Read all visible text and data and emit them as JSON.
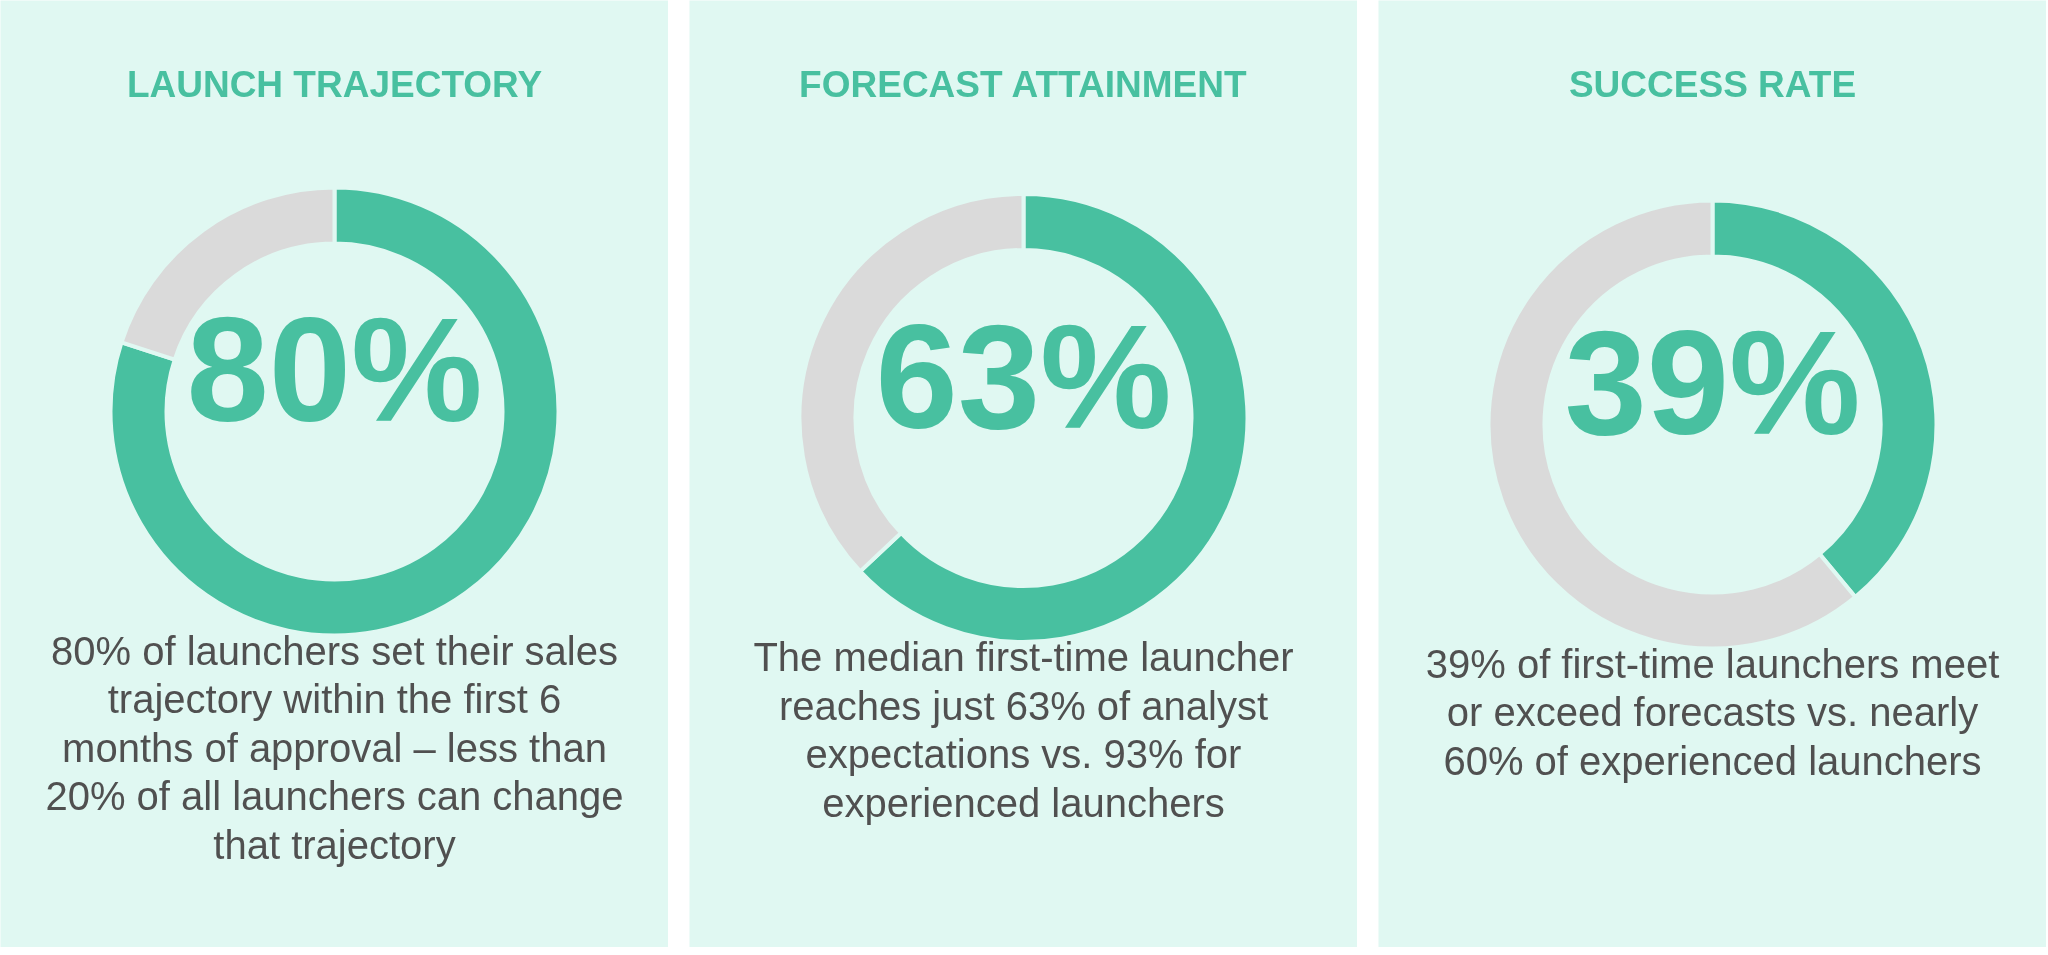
{
  "chart_data": [
    {
      "type": "donut",
      "title": "LAUNCH TRAJECTORY",
      "categories": [
        null,
        null
      ],
      "values": [
        80,
        20
      ],
      "colors": [
        "#48c0a0",
        "#dadada"
      ],
      "value_labels": [
        "80%",
        null
      ],
      "annotations": [
        "80% of launchers set their sales trajectory within the first 6 months of approval – less than 20% of all launchers can change that trajectory"
      ]
    },
    {
      "type": "donut",
      "title": "FORECAST ATTAINMENT",
      "categories": [
        null,
        null
      ],
      "values": [
        63,
        37
      ],
      "colors": [
        "#48c0a0",
        "#dadada"
      ],
      "value_labels": [
        "63%",
        null
      ],
      "annotations": [
        "The median first-time launcher reaches just 63% of analyst expectations vs. 93% for experienced launchers"
      ]
    },
    {
      "type": "donut",
      "title": "SUCCESS RATE",
      "categories": [
        null,
        null
      ],
      "values": [
        39,
        61
      ],
      "colors": [
        "#48c0a0",
        "#dadada"
      ],
      "value_labels": [
        "39%",
        null
      ],
      "annotations": [
        "39% of first-time launchers meet or exceed forecasts vs. nearly 60% of experienced launchers"
      ]
    }
  ]
}
